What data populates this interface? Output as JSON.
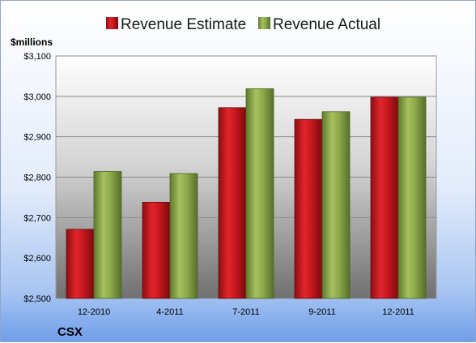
{
  "chart_data": {
    "type": "bar",
    "categories": [
      "12-2010",
      "4-2011",
      "7-2011",
      "9-2011",
      "12-2011"
    ],
    "series": [
      {
        "name": "Revenue Estimate",
        "color": "#c8181e",
        "values": [
          2671,
          2738,
          2972,
          2943,
          2998
        ]
      },
      {
        "name": "Revenue Actual",
        "color": "#8faa4a",
        "values": [
          2814,
          2809,
          3019,
          2962,
          2998
        ]
      }
    ],
    "ylabel": "$millions",
    "ylim": [
      2500,
      3100
    ],
    "yticks": [
      2500,
      2600,
      2700,
      2800,
      2900,
      3000,
      3100
    ],
    "ytick_labels": [
      "$2,500",
      "$2,600",
      "$2,700",
      "$2,800",
      "$2,900",
      "$3,000",
      "$3,100"
    ],
    "grid": true,
    "legend_position": "top",
    "footer_label": "CSX"
  }
}
